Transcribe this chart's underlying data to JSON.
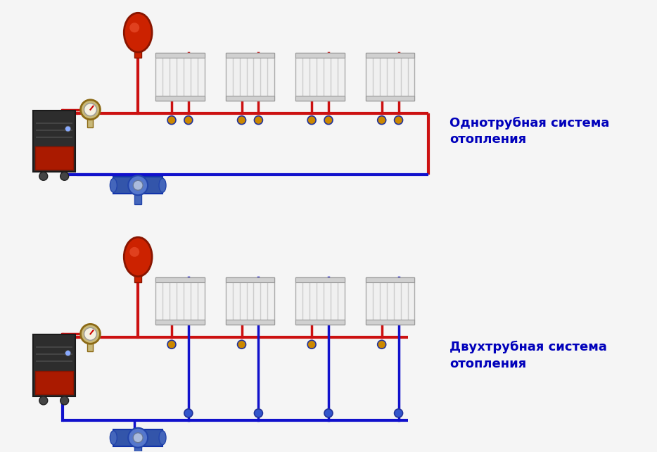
{
  "bg_color": "#f5f5f5",
  "red_color": "#cc1111",
  "blue_color": "#1111cc",
  "label1": "Однотрубная система\nотопления",
  "label2": "Двухтрубная система\nотопления",
  "label_color": "#0000bb",
  "label_fontsize": 13,
  "pipe_linewidth": 3.0
}
